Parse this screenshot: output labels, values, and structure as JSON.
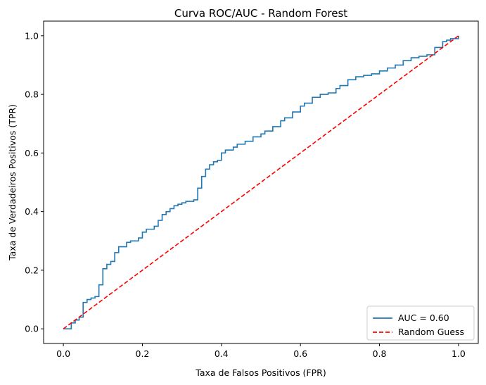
{
  "chart_data": {
    "type": "line",
    "title": "Curva ROC/AUC - Random Forest",
    "xlabel": "Taxa de Falsos Positivos (FPR)",
    "ylabel": "Taxa de Verdadeiros Positivos (TPR)",
    "xlim": [
      -0.05,
      1.05
    ],
    "ylim": [
      -0.05,
      1.05
    ],
    "xticks": [
      0.0,
      0.2,
      0.4,
      0.6,
      0.8,
      1.0
    ],
    "yticks": [
      0.0,
      0.2,
      0.4,
      0.6,
      0.8,
      1.0
    ],
    "tick_labels": [
      "0.0",
      "0.2",
      "0.4",
      "0.6",
      "0.8",
      "1.0"
    ],
    "grid": false,
    "legend_position": "lower-right",
    "series": [
      {
        "name": "AUC = 0.60",
        "color": "#1f77b4",
        "style": "solid",
        "x": [
          0.0,
          0.02,
          0.03,
          0.04,
          0.05,
          0.05,
          0.06,
          0.07,
          0.08,
          0.09,
          0.09,
          0.1,
          0.1,
          0.11,
          0.12,
          0.13,
          0.13,
          0.14,
          0.14,
          0.16,
          0.17,
          0.19,
          0.2,
          0.21,
          0.23,
          0.24,
          0.25,
          0.25,
          0.26,
          0.27,
          0.28,
          0.29,
          0.3,
          0.31,
          0.33,
          0.34,
          0.34,
          0.35,
          0.35,
          0.36,
          0.37,
          0.38,
          0.39,
          0.4,
          0.41,
          0.43,
          0.44,
          0.46,
          0.48,
          0.5,
          0.51,
          0.53,
          0.55,
          0.56,
          0.58,
          0.6,
          0.61,
          0.63,
          0.65,
          0.67,
          0.69,
          0.7,
          0.72,
          0.74,
          0.76,
          0.78,
          0.8,
          0.82,
          0.84,
          0.86,
          0.88,
          0.9,
          0.92,
          0.94,
          0.94,
          0.96,
          0.97,
          0.98,
          1.0
        ],
        "y": [
          0.0,
          0.02,
          0.03,
          0.04,
          0.05,
          0.09,
          0.1,
          0.105,
          0.11,
          0.14,
          0.15,
          0.15,
          0.205,
          0.22,
          0.23,
          0.24,
          0.26,
          0.27,
          0.28,
          0.295,
          0.3,
          0.31,
          0.33,
          0.34,
          0.35,
          0.37,
          0.37,
          0.39,
          0.4,
          0.41,
          0.42,
          0.425,
          0.43,
          0.435,
          0.44,
          0.46,
          0.48,
          0.5,
          0.52,
          0.545,
          0.56,
          0.57,
          0.575,
          0.6,
          0.61,
          0.62,
          0.63,
          0.64,
          0.655,
          0.665,
          0.675,
          0.69,
          0.71,
          0.72,
          0.74,
          0.76,
          0.77,
          0.79,
          0.8,
          0.805,
          0.82,
          0.83,
          0.85,
          0.86,
          0.865,
          0.87,
          0.88,
          0.89,
          0.9,
          0.915,
          0.925,
          0.93,
          0.935,
          0.94,
          0.96,
          0.98,
          0.985,
          0.99,
          1.0
        ]
      },
      {
        "name": "Random Guess",
        "color": "#ff0000",
        "style": "dashed",
        "x": [
          0.0,
          1.0
        ],
        "y": [
          0.0,
          1.0
        ]
      }
    ]
  }
}
